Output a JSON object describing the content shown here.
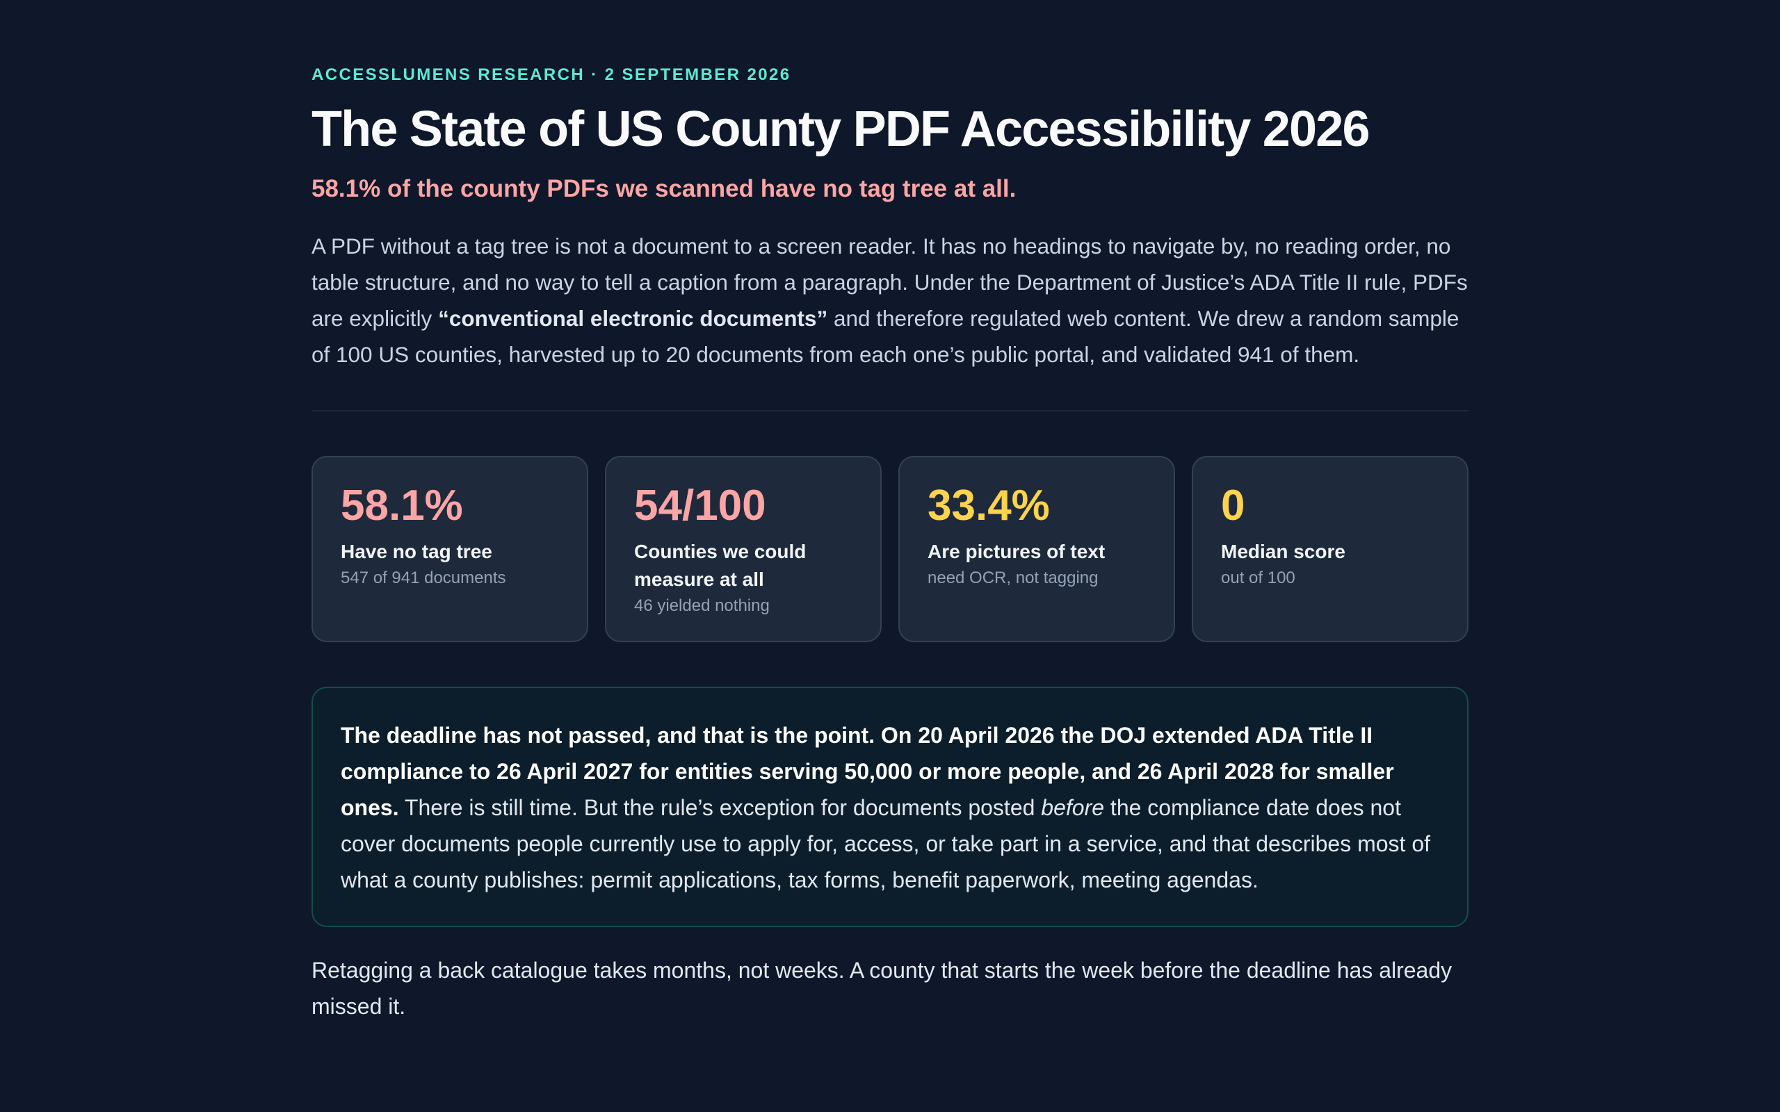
{
  "header": {
    "eyebrow": "ACCESSLUMENS RESEARCH · 2 SEPTEMBER 2026",
    "title": "The State of US County PDF Accessibility 2026",
    "subtitle": "58.1% of the county PDFs we scanned have no tag tree at all."
  },
  "intro": {
    "part1": "A PDF without a tag tree is not a document to a screen reader. It has no headings to navigate by, no reading order, no table structure, and no way to tell a caption from a paragraph. Under the Department of Justice’s ADA Title II rule, PDFs are explicitly ",
    "emphasis": "“conventional electronic documents”",
    "part2": " and therefore regulated web content. We drew a random sample of 100 US counties, harvested up to 20 documents from each one’s public portal, and validated 941 of them."
  },
  "stats": [
    {
      "value": "58.1%",
      "label": "Have no tag tree",
      "note": "547 of 941 documents",
      "color": "#fca5a5"
    },
    {
      "value": "54/100",
      "label": "Counties we could measure at all",
      "note": "46 yielded nothing",
      "color": "#fca5a5"
    },
    {
      "value": "33.4%",
      "label": "Are pictures of text",
      "note": "need OCR, not tagging",
      "color": "#fcd34d"
    },
    {
      "value": "0",
      "label": "Median score",
      "note": "out of 100",
      "color": "#fcd34d"
    }
  ],
  "callout": {
    "bold": "The deadline has not passed, and that is the point. On 20 April 2026 the DOJ extended ADA Title II compliance to 26 April 2027 for entities serving 50,000 or more people, and 26 April 2028 for smaller ones.",
    "text1": " There is still time. But the rule’s exception for documents posted ",
    "italic": "before",
    "text2": " the compliance date does not cover documents people currently use to apply for, access, or take part in a service, and that describes most of what a county publishes: permit applications, tax forms, benefit paperwork, meeting agendas."
  },
  "closing": "Retagging a back catalogue takes months, not weeks. A county that starts the week before the deadline has already missed it."
}
